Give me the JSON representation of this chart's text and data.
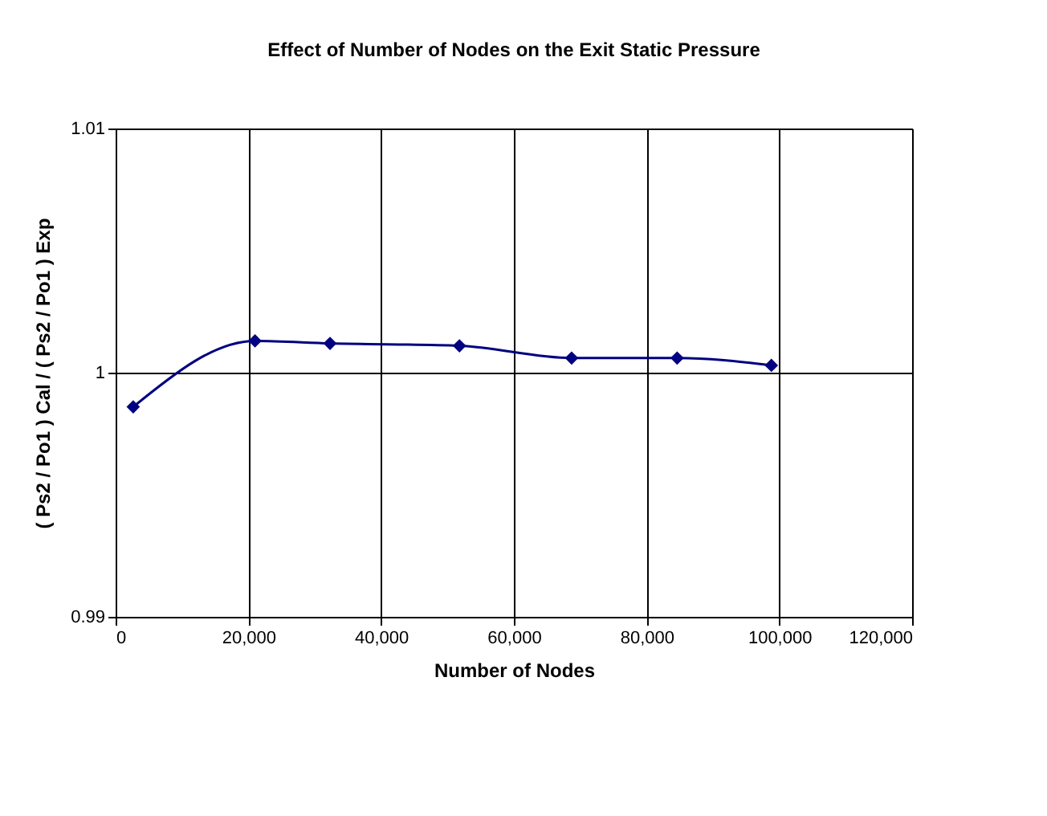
{
  "chart_data": {
    "type": "line",
    "title": "Effect of Number of Nodes on the Exit Static Pressure",
    "xlabel": "Number of Nodes",
    "ylabel": "( Ps2 / Po1 ) Cal / ( Ps2 / Po1 ) Exp",
    "x": [
      2650,
      21000,
      32300,
      51800,
      68700,
      84600,
      98800
    ],
    "series": [
      {
        "color": "#000080",
        "values": [
          0.9986,
          1.0013,
          1.0012,
          1.0011,
          1.0006,
          1.0006,
          1.0003
        ]
      }
    ],
    "xlim": [
      0,
      120000
    ],
    "xticks": [
      {
        "value": 0,
        "label": "0"
      },
      {
        "value": 20000,
        "label": "20,000"
      },
      {
        "value": 40000,
        "label": "40,000"
      },
      {
        "value": 60000,
        "label": "60,000"
      },
      {
        "value": 80000,
        "label": "80,000"
      },
      {
        "value": 100000,
        "label": "100,000"
      },
      {
        "value": 120000,
        "label": "120,000"
      }
    ],
    "ylim": [
      0.99,
      1.01
    ],
    "yticks": [
      0.99,
      1,
      1.01
    ],
    "grid": true,
    "marker": "diamond",
    "line_style": "solid"
  }
}
